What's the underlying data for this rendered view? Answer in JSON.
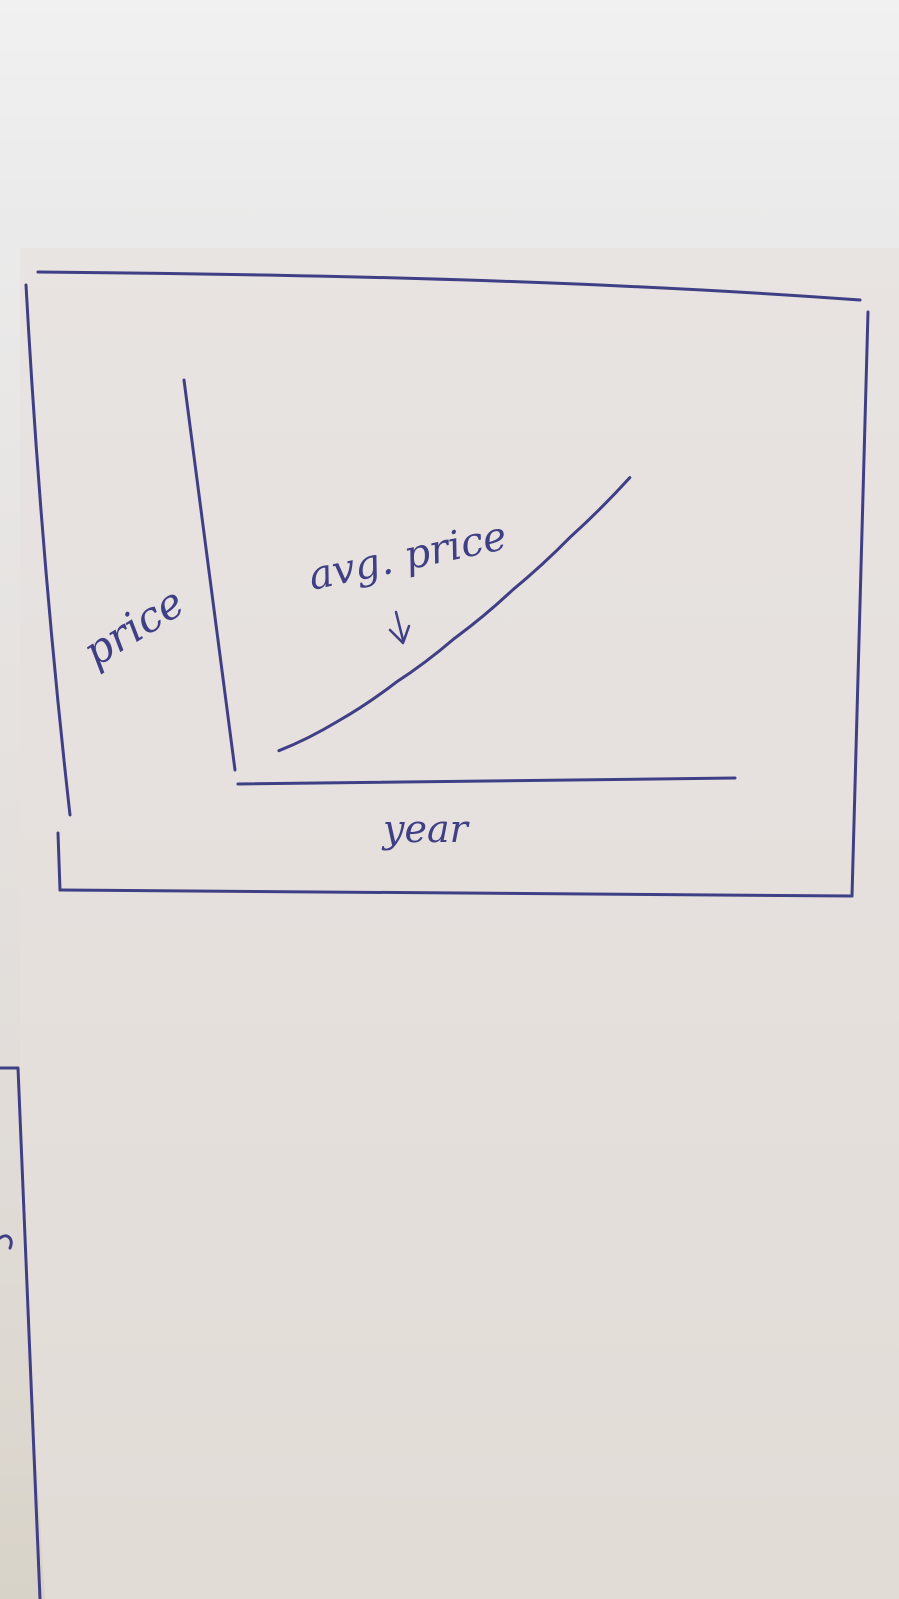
{
  "chart_data": {
    "type": "line",
    "title": "",
    "xlabel": "year",
    "ylabel": "price",
    "annotation": "avg. price",
    "series": [
      {
        "name": "avg. price",
        "x": [
          0,
          1,
          2,
          3,
          4,
          5,
          6
        ],
        "y": [
          0.3,
          0.6,
          1.0,
          1.45,
          1.95,
          2.5,
          3.1
        ]
      }
    ],
    "xlim": [
      0,
      8.5
    ],
    "ylim": [
      0,
      4.1
    ],
    "grid": false,
    "legend": "none",
    "ink_color": "#3f3f86"
  }
}
